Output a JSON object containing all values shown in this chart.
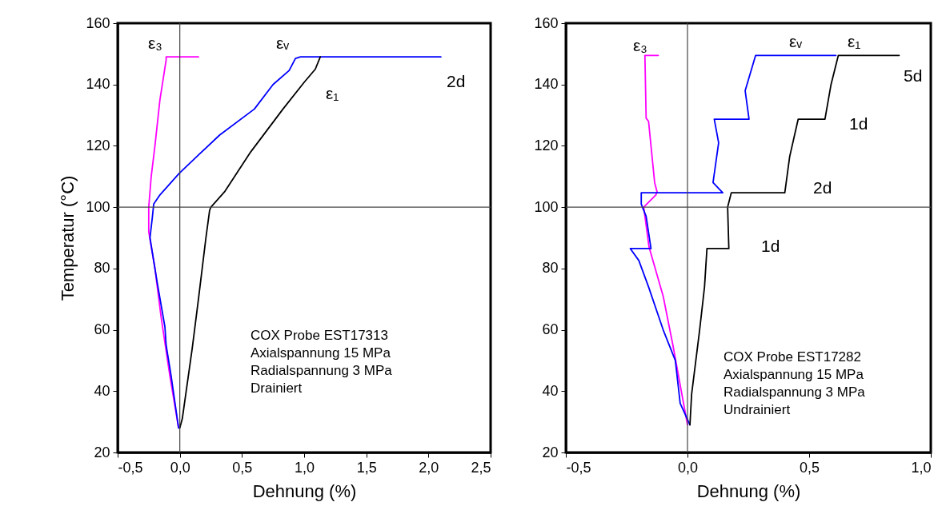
{
  "chart_data": [
    {
      "type": "line",
      "xlabel": "Dehnung (%)",
      "ylabel": "Temperatur (°C)",
      "xlim": [
        -0.5,
        2.5
      ],
      "xticks": [
        {
          "value": -0.5,
          "label": "-0,5"
        },
        {
          "value": 0,
          "label": "0,0"
        },
        {
          "value": 0.5,
          "label": "0,5"
        },
        {
          "value": 1,
          "label": "1,0"
        },
        {
          "value": 1.5,
          "label": "1,5"
        },
        {
          "value": 2,
          "label": "2,0"
        },
        {
          "value": 2.5,
          "label": "2,5"
        }
      ],
      "ylim": [
        20,
        160
      ],
      "yticks": [
        20,
        40,
        60,
        80,
        100,
        120,
        140,
        160
      ],
      "grid": false,
      "marker": "none",
      "line_style": "solid",
      "series": [
        {
          "name": "ε₃",
          "color": "#ff00ff",
          "x": [
            -0.01,
            -0.08,
            -0.15,
            -0.2,
            -0.25,
            -0.25,
            -0.23,
            -0.2,
            -0.16,
            -0.11,
            -0.11,
            0.15
          ],
          "values": [
            28,
            45,
            64,
            80,
            92,
            100,
            110,
            120,
            135,
            148,
            149,
            149
          ]
        },
        {
          "name": "εᵥ",
          "color": "#0000ff",
          "x": [
            -0.01,
            -0.07,
            -0.11,
            -0.12,
            -0.18,
            -0.24,
            -0.22,
            -0.21,
            -0.16,
            -0.005,
            0.15,
            0.32,
            0.6,
            0.75,
            0.88,
            0.93,
            0.97,
            2.1
          ],
          "values": [
            28,
            45,
            55,
            61,
            75,
            90,
            97,
            101,
            104,
            111,
            117,
            123.5,
            132,
            140,
            144.6,
            148.5,
            149,
            149
          ]
        },
        {
          "name": "ε₁",
          "color": "#000000",
          "x": [
            0,
            0.02,
            0.1,
            0.15,
            0.21,
            0.24,
            0.25,
            0.36,
            0.57,
            0.83,
            1.0,
            1.09,
            1.13
          ],
          "values": [
            28,
            31,
            54,
            70,
            90,
            99,
            100,
            105,
            118,
            132,
            140.7,
            145,
            149
          ]
        }
      ],
      "ref_lines": [
        {
          "axis": "x",
          "value": 0
        },
        {
          "axis": "y",
          "value": 100
        }
      ],
      "annotations": [
        "2d",
        "COX Probe EST17313",
        "Axialspannung  15 MPa",
        "Radialspannung 3 MPa",
        "Drainiert"
      ]
    },
    {
      "type": "line",
      "xlabel": "Dehnung (%)",
      "xlim": [
        -0.5,
        1.0
      ],
      "xticks": [
        {
          "value": -0.5,
          "label": "-0,5"
        },
        {
          "value": 0,
          "label": "0,0"
        },
        {
          "value": 0.5,
          "label": "0,5"
        },
        {
          "value": 1,
          "label": "1,0"
        }
      ],
      "ylim": [
        20,
        160
      ],
      "yticks": [
        20,
        40,
        60,
        80,
        100,
        120,
        140,
        160
      ],
      "grid": false,
      "marker": "none",
      "line_style": "solid",
      "series": [
        {
          "name": "ε₃",
          "color": "#ff00ff",
          "x": [
            0,
            -0.03,
            -0.06,
            -0.1,
            -0.158,
            -0.18,
            -0.13,
            -0.125,
            -0.135,
            -0.16,
            -0.17,
            -0.175,
            -0.12
          ],
          "values": [
            29,
            42,
            55,
            71,
            87,
            100,
            104,
            105,
            108,
            128,
            129,
            149.5,
            149.5
          ]
        },
        {
          "name": "εᵥ",
          "color": "#0000ff",
          "x": [
            0.01,
            -0.03,
            -0.05,
            -0.1,
            -0.16,
            -0.2,
            -0.235,
            -0.15,
            -0.17,
            -0.19,
            -0.19,
            0.145,
            0.105,
            0.128,
            0.11,
            0.253,
            0.237,
            0.28,
            0.61
          ],
          "values": [
            29,
            36,
            50,
            60,
            74,
            82.6,
            86.5,
            86.5,
            97,
            101,
            104.7,
            104.7,
            108,
            121,
            128.7,
            128.7,
            138,
            149.5,
            149.5
          ]
        },
        {
          "name": "ε₁",
          "color": "#000000",
          "x": [
            0.01,
            0.017,
            0.05,
            0.07,
            0.08,
            0.17,
            0.165,
            0.18,
            0.4,
            0.42,
            0.455,
            0.565,
            0.59,
            0.62,
            0.87
          ],
          "values": [
            29,
            39,
            60,
            74,
            86.5,
            86.5,
            100,
            104.7,
            104.7,
            116.5,
            128.7,
            128.7,
            140,
            149.5,
            149.5
          ]
        }
      ],
      "ref_lines": [
        {
          "axis": "x",
          "value": 0
        },
        {
          "axis": "y",
          "value": 100
        }
      ],
      "annotations": [
        "5d",
        "1d",
        "2d",
        "1d",
        "COX Probe EST17282",
        "Axialspannung  15 MPa",
        "Radialspannung 3 MPa",
        "Undrainiert"
      ]
    }
  ]
}
